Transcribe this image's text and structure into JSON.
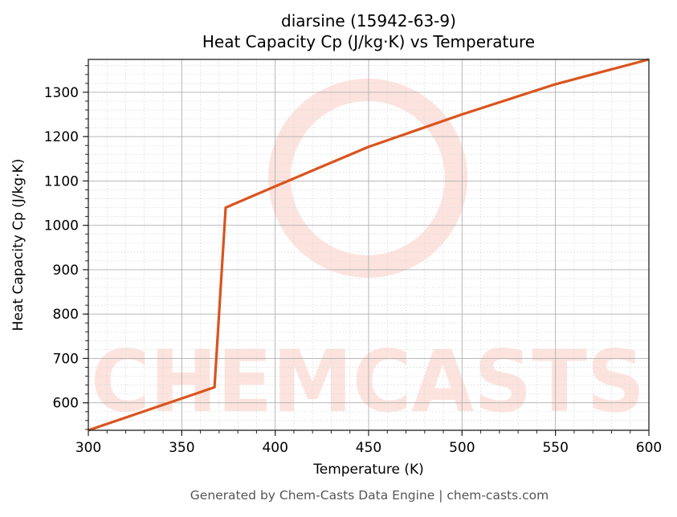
{
  "chart_data": {
    "type": "line",
    "title": "diarsine (15942-63-9)",
    "subtitle": "Heat Capacity Cp (J/kg·K) vs Temperature",
    "xlabel": "Temperature (K)",
    "ylabel": "Heat Capacity Cp (J/kg·K)",
    "xlim": [
      300,
      600
    ],
    "ylim": [
      538,
      1374
    ],
    "x_ticks": [
      300,
      350,
      400,
      450,
      500,
      550,
      600
    ],
    "y_ticks": [
      600,
      700,
      800,
      900,
      1000,
      1100,
      1200,
      1300
    ],
    "grid": true,
    "legend": null,
    "series": [
      {
        "name": "Cp",
        "color": "#d9541e",
        "x": [
          300,
          367.5,
          373.5,
          400,
          450,
          500,
          550,
          600
        ],
        "y": [
          538,
          635,
          1040,
          1088,
          1177,
          1250,
          1318,
          1374
        ]
      }
    ]
  },
  "title": {
    "line1": "diarsine (15942-63-9)",
    "line2": "Heat Capacity Cp (J/kg·K) vs Temperature"
  },
  "axes": {
    "xlabel": "Temperature (K)",
    "ylabel": "Heat Capacity Cp (J/kg·K)",
    "x_tick_labels": [
      "300",
      "350",
      "400",
      "450",
      "500",
      "550",
      "600"
    ],
    "y_tick_labels": [
      "600",
      "700",
      "800",
      "900",
      "1000",
      "1100",
      "1200",
      "1300"
    ]
  },
  "watermark": {
    "text": "CHEMCASTS",
    "color": "#fde2dc"
  },
  "footer": {
    "text": "Generated by Chem-Casts Data Engine | chem-casts.com"
  }
}
